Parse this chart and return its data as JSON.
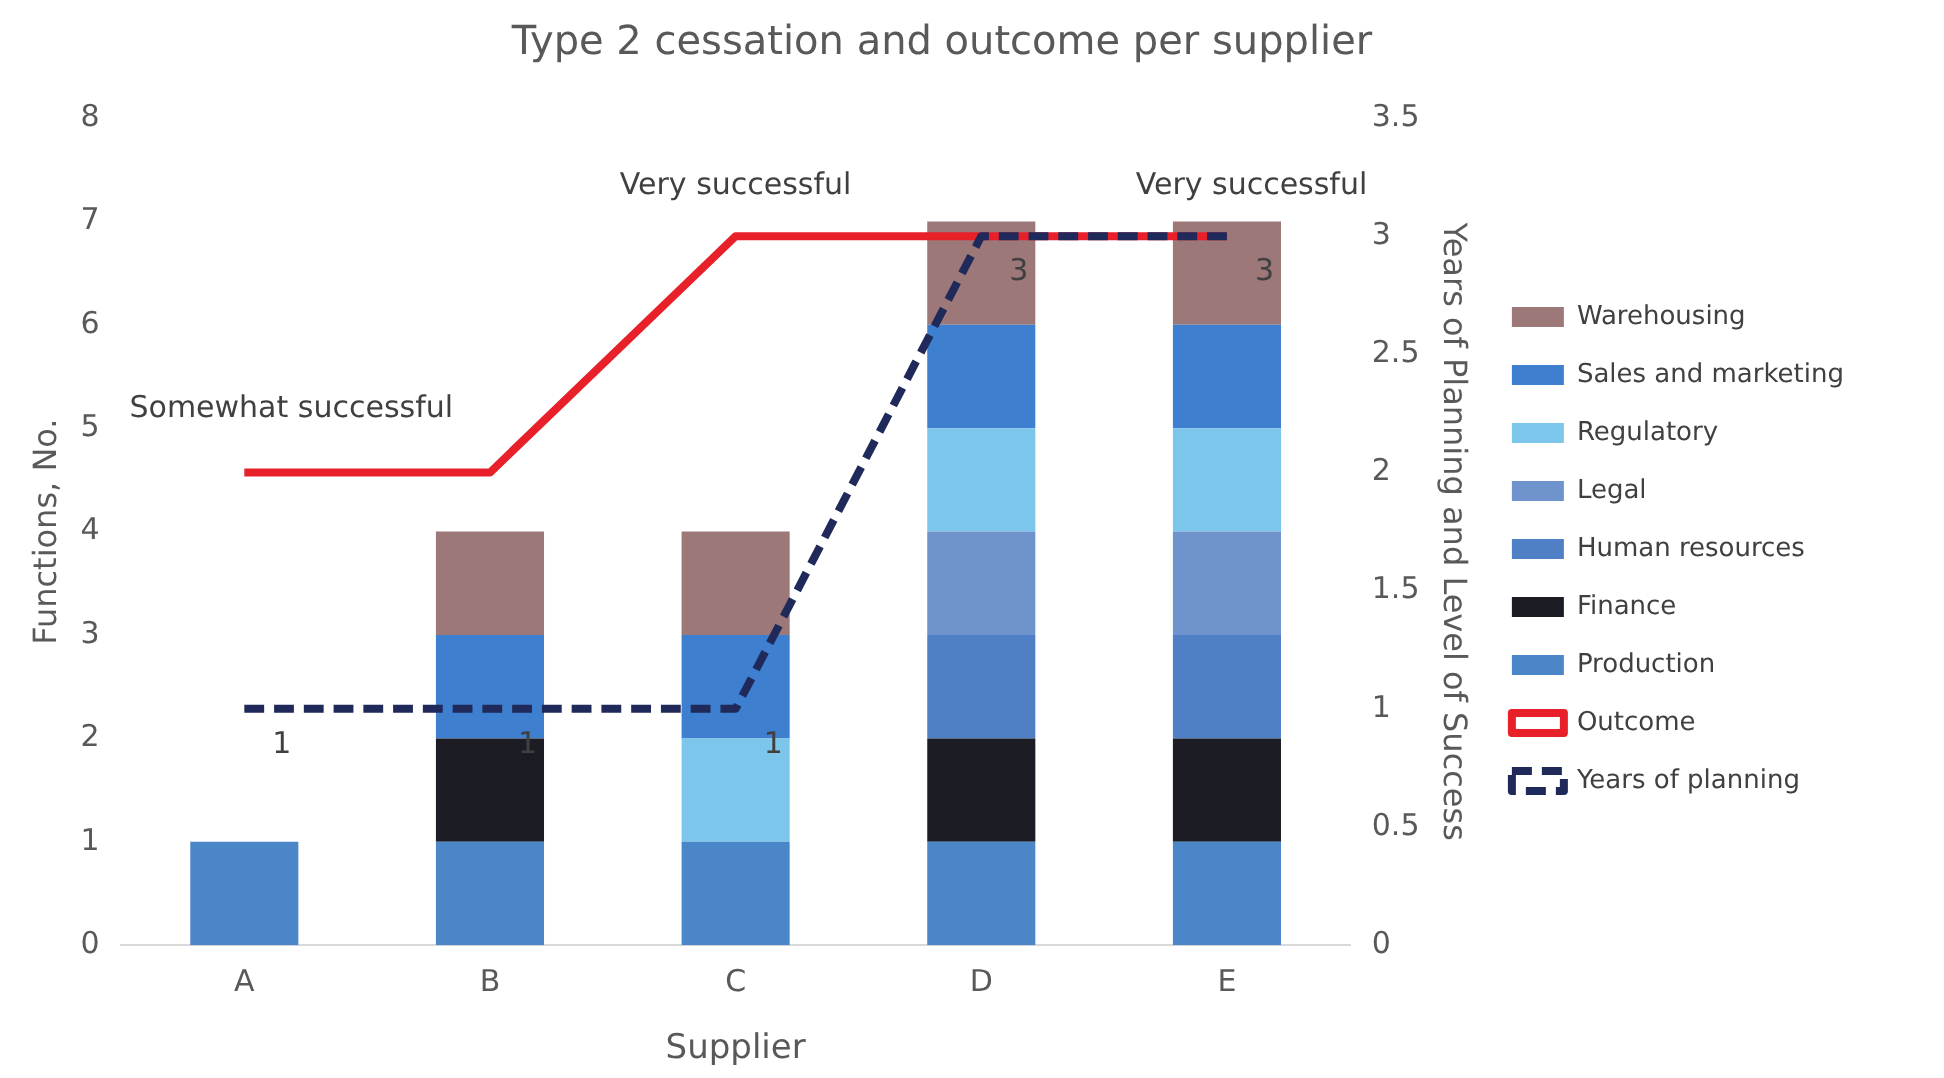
{
  "chart_data": {
    "type": "bar",
    "title": "Type 2 cessation and outcome per supplier",
    "xlabel": "Supplier",
    "ylabel": "Functions, No.",
    "y2label": "Years of Planning and Level of Success",
    "categories": [
      "A",
      "B",
      "C",
      "D",
      "E"
    ],
    "stacked": true,
    "ylim": [
      0,
      8
    ],
    "yticks": [
      0,
      1,
      2,
      3,
      4,
      5,
      6,
      7,
      8
    ],
    "y2lim": [
      0,
      3.5
    ],
    "y2ticks": [
      0,
      0.5,
      1,
      1.5,
      2,
      2.5,
      3,
      3.5
    ],
    "grid": false,
    "legend": "right",
    "series": [
      {
        "name": "Production",
        "color": "#4a86c8",
        "values": [
          1,
          1,
          1,
          1,
          1
        ]
      },
      {
        "name": "Finance",
        "color": "#1c1c24",
        "values": [
          null,
          1,
          null,
          1,
          1
        ]
      },
      {
        "name": "Human resources",
        "color": "#4f7fc4",
        "values": [
          null,
          null,
          null,
          1,
          1
        ]
      },
      {
        "name": "Legal",
        "color": "#6f93cc",
        "values": [
          null,
          null,
          null,
          1,
          1
        ]
      },
      {
        "name": "Regulatory",
        "color": "#7cc6ec",
        "values": [
          null,
          null,
          1,
          1,
          1
        ]
      },
      {
        "name": "Sales and marketing",
        "color": "#3f7fcf",
        "values": [
          null,
          1,
          1,
          1,
          1
        ]
      },
      {
        "name": "Warehousing",
        "color": "#9c7878",
        "values": [
          null,
          1,
          1,
          1,
          1
        ]
      },
      {
        "name": "Outcome",
        "type": "line",
        "axis": "y2",
        "color": "#e8202a",
        "line_style": "solid",
        "values": [
          2,
          2,
          3,
          3,
          3
        ]
      },
      {
        "name": "Years of planning",
        "type": "line",
        "axis": "y2",
        "color": "#1f2a5a",
        "line_style": "dashed",
        "values": [
          1,
          1,
          1,
          3,
          3
        ],
        "value_labels": [
          "1",
          "1",
          "1",
          "3",
          "3"
        ]
      }
    ],
    "annotations": [
      "Somewhat successful",
      "Very successful",
      "Very successful"
    ]
  }
}
